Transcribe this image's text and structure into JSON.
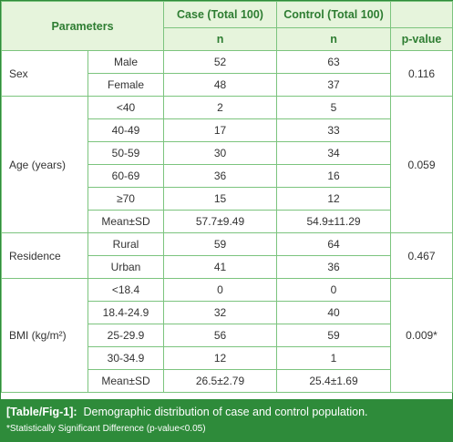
{
  "header": {
    "parameters": "Parameters",
    "case": "Case (Total 100)",
    "control": "Control (Total 100)",
    "n_case": "n",
    "n_control": "n",
    "pvalue": "p-value"
  },
  "sex": {
    "label": "Sex",
    "pvalue": "0.116",
    "rows": [
      {
        "sub": "Male",
        "case": "52",
        "control": "63"
      },
      {
        "sub": "Female",
        "case": "48",
        "control": "37"
      }
    ]
  },
  "age": {
    "label": "Age (years)",
    "pvalue": "0.059",
    "rows": [
      {
        "sub": "<40",
        "case": "2",
        "control": "5"
      },
      {
        "sub": "40-49",
        "case": "17",
        "control": "33"
      },
      {
        "sub": "50-59",
        "case": "30",
        "control": "34"
      },
      {
        "sub": "60-69",
        "case": "36",
        "control": "16"
      },
      {
        "sub": "≥70",
        "case": "15",
        "control": "12"
      },
      {
        "sub": "Mean±SD",
        "case": "57.7±9.49",
        "control": "54.9±11.29"
      }
    ]
  },
  "residence": {
    "label": "Residence",
    "pvalue": "0.467",
    "rows": [
      {
        "sub": "Rural",
        "case": "59",
        "control": "64"
      },
      {
        "sub": "Urban",
        "case": "41",
        "control": "36"
      }
    ]
  },
  "bmi": {
    "label": "BMI (kg/m²)",
    "pvalue": "0.009*",
    "rows": [
      {
        "sub": "<18.4",
        "case": "0",
        "control": "0"
      },
      {
        "sub": "18.4-24.9",
        "case": "32",
        "control": "40"
      },
      {
        "sub": "25-29.9",
        "case": "56",
        "control": "59"
      },
      {
        "sub": "30-34.9",
        "case": "12",
        "control": "1"
      },
      {
        "sub": "Mean±SD",
        "case": "26.5±2.79",
        "control": "25.4±1.69"
      }
    ]
  },
  "caption": {
    "label": "[Table/Fig-1]:",
    "text": "Demographic distribution of case and control population.",
    "footnote": "*Statistically Significant Difference (p-value<0.05)"
  }
}
